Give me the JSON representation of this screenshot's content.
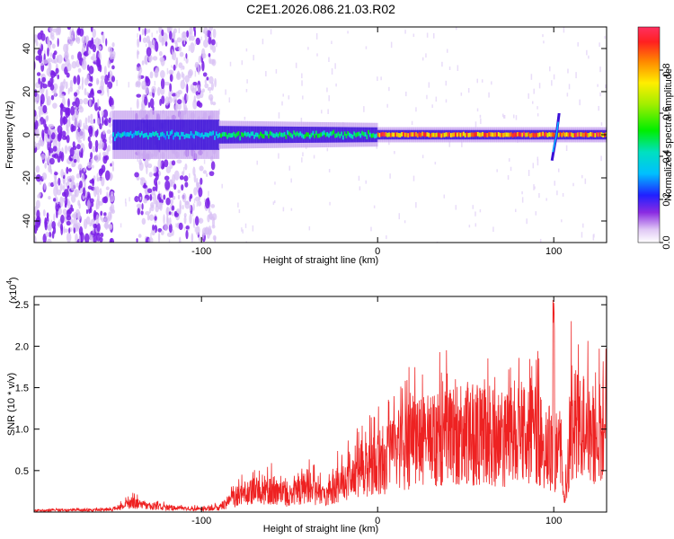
{
  "title": "C2E1.2026.086.21.03.R02",
  "colors": {
    "spectrogram_noise": "#7a1fe6",
    "snr_line": "#ee2222",
    "axis": "#000000"
  },
  "chart_data": [
    {
      "type": "heatmap",
      "name": "spectrogram",
      "xlabel": "Height of straight line (km)",
      "ylabel": "Frequency (Hz)",
      "xlim": [
        -195,
        130
      ],
      "ylim": [
        -50,
        50
      ],
      "x_ticks": [
        -100,
        0,
        100
      ],
      "x_tick_labels": [
        "-100",
        "0",
        "100"
      ],
      "y_ticks": [
        -40,
        -20,
        0,
        20,
        40
      ],
      "y_tick_labels": [
        "-40",
        "-20",
        "0",
        "20",
        "40"
      ],
      "colorbar": {
        "label": "Normalized spectral amplitude",
        "range": [
          0,
          1
        ],
        "ticks": [
          0.0,
          0.2,
          0.4,
          0.6,
          0.8
        ],
        "tick_labels": [
          "0.0",
          "0.2",
          "0.4",
          "0.6",
          "0.8"
        ],
        "colormap": "rainbow"
      },
      "features": {
        "noise_regions_km": [
          [
            -195,
            -150
          ],
          [
            -137,
            -92
          ]
        ],
        "ridge_start_km": -150,
        "ridge_frequency_hz": 0,
        "strong_ridge_start_km": 0,
        "burst_km": 100
      }
    },
    {
      "type": "line",
      "name": "snr",
      "xlabel": "Height of straight line (km)",
      "ylabel": "SNR (10 * v/v)",
      "multiplier_label": "(x10",
      "multiplier_exponent": "4",
      "multiplier_close": ")",
      "xlim": [
        -195,
        130
      ],
      "ylim": [
        0,
        2.6
      ],
      "x_ticks": [
        -100,
        0,
        100
      ],
      "x_tick_labels": [
        "-100",
        "0",
        "100"
      ],
      "y_ticks": [
        0.5,
        1.0,
        1.5,
        2.0,
        2.5
      ],
      "y_tick_labels": [
        "0.5",
        "1.0",
        "1.5",
        "2.0",
        "2.5"
      ],
      "envelope": {
        "x": [
          -195,
          -150,
          -140,
          -120,
          -100,
          -90,
          -80,
          -70,
          -60,
          -50,
          -40,
          -30,
          -20,
          -10,
          0,
          10,
          20,
          30,
          40,
          50,
          60,
          70,
          80,
          90,
          95,
          100,
          103,
          106,
          110,
          120,
          130
        ],
        "y": [
          0.02,
          0.03,
          0.12,
          0.06,
          0.04,
          0.06,
          0.2,
          0.3,
          0.3,
          0.18,
          0.35,
          0.2,
          0.45,
          0.55,
          0.65,
          0.8,
          0.9,
          0.95,
          1.0,
          1.05,
          1.05,
          1.0,
          1.0,
          1.05,
          0.9,
          0.5,
          1.0,
          0.15,
          1.2,
          1.05,
          1.05
        ]
      },
      "peak": {
        "x": 100,
        "y": 2.6
      }
    }
  ]
}
